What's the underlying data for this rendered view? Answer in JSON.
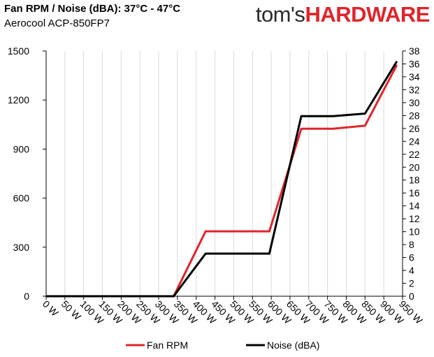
{
  "header": {
    "title": "Fan RPM / Noise (dBA): 37°C - 47°C",
    "subtitle": "Aerocool ACP-850FP7",
    "logo_part1": "tom's",
    "logo_part2": "HARDWARE",
    "logo_colors": {
      "dark": "#2b2b2b",
      "red": "#e0242b"
    }
  },
  "chart_data": {
    "type": "line",
    "title": "Fan RPM / Noise (dBA): 37°C - 47°C",
    "subtitle": "Aerocool ACP-850FP7",
    "x": [
      0,
      85,
      170,
      255,
      340,
      425,
      510,
      595,
      680,
      765,
      850,
      935
    ],
    "xticks": [
      "0 W",
      "50 W",
      "100 W",
      "150 W",
      "200 W",
      "250 W",
      "300 W",
      "350 W",
      "400 W",
      "450 W",
      "500 W",
      "550 W",
      "600 W",
      "650 W",
      "700 W",
      "750 W",
      "800 W",
      "850 W",
      "900 W",
      "950 W"
    ],
    "xlim": [
      0,
      950
    ],
    "series": [
      {
        "name": "Fan RPM",
        "axis": "left",
        "color": "#e0242b",
        "values": [
          0,
          0,
          0,
          0,
          0,
          397,
          397,
          397,
          1025,
          1025,
          1043,
          1415
        ]
      },
      {
        "name": "Noise (dBA)",
        "axis": "right",
        "color": "#000000",
        "values": [
          0,
          0,
          0,
          0,
          0,
          6.6,
          6.6,
          6.6,
          27.9,
          27.9,
          28.3,
          36.4
        ]
      }
    ],
    "y_left": {
      "ylim": [
        0,
        1500
      ],
      "ticks": [
        0,
        300,
        600,
        900,
        1200,
        1500
      ]
    },
    "y_right": {
      "ylim": [
        0,
        38
      ],
      "ticks": [
        0,
        2,
        4,
        6,
        8,
        10,
        12,
        14,
        16,
        18,
        20,
        22,
        24,
        26,
        28,
        30,
        32,
        34,
        36,
        38
      ]
    },
    "grid": "vertical",
    "legend_position": "bottom"
  }
}
